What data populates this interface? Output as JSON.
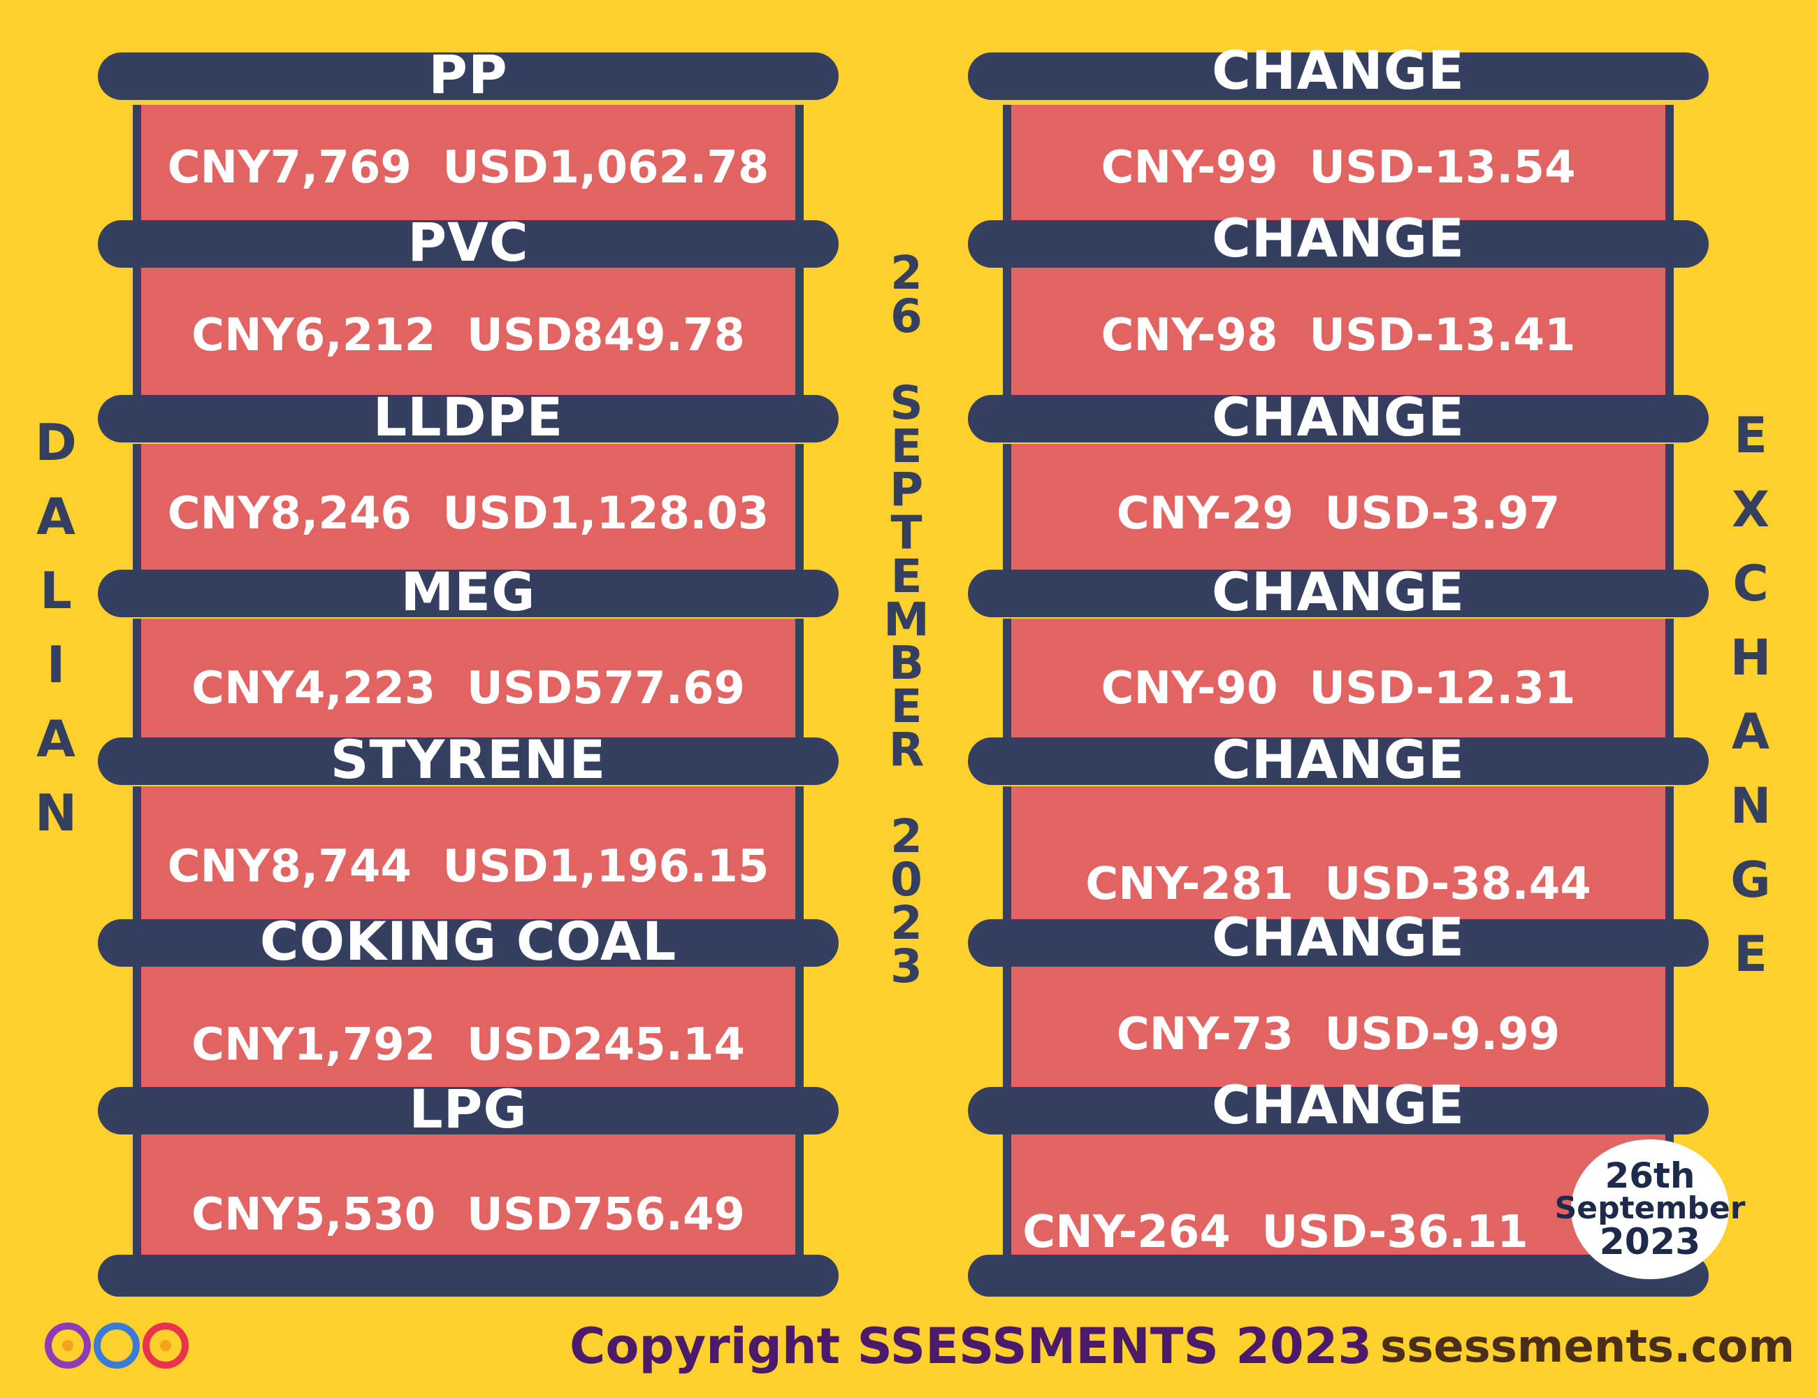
{
  "left_label": [
    "D",
    "A",
    "L",
    "I",
    "A",
    "N"
  ],
  "right_label": [
    "E",
    "X",
    "C",
    "H",
    "A",
    "N",
    "G",
    "E"
  ],
  "center_label": [
    "2",
    "6",
    "",
    "S",
    "E",
    "P",
    "T",
    "E",
    "M",
    "B",
    "E",
    "R",
    "",
    "2",
    "0",
    "2",
    "3"
  ],
  "rows": [
    {
      "product": "PP",
      "price": "CNY7,769  USD1,062.78",
      "change_label": "CHANGE",
      "change": "CNY-99  USD-13.54"
    },
    {
      "product": "PVC",
      "price": "CNY6,212  USD849.78",
      "change_label": "CHANGE",
      "change": "CNY-98  USD-13.41"
    },
    {
      "product": "LLDPE",
      "price": "CNY8,246  USD1,128.03",
      "change_label": "CHANGE",
      "change": "CNY-29  USD-3.97"
    },
    {
      "product": "MEG",
      "price": "CNY4,223  USD577.69",
      "change_label": "CHANGE",
      "change": "CNY-90  USD-12.31"
    },
    {
      "product": "STYRENE",
      "price": "CNY8,744  USD1,196.15",
      "change_label": "CHANGE",
      "change": "CNY-281  USD-38.44"
    },
    {
      "product": "COKING COAL",
      "price": "CNY1,792  USD245.14",
      "change_label": "CHANGE",
      "change": "CNY-73  USD-9.99"
    },
    {
      "product": "LPG",
      "price": "CNY5,530  USD756.49",
      "change_label": "CHANGE",
      "change": "CNY-264  USD-36.11"
    }
  ],
  "stamp": {
    "line1": "26th",
    "line2": "September",
    "line3": "2023"
  },
  "footer": {
    "copyright": "Copyright SSESSMENTS 2023",
    "site": "ssessments.com"
  },
  "colors": {
    "background": "#fdd02b",
    "bar": "#353f60",
    "cell": "#e26462",
    "text": "#ffffff"
  }
}
